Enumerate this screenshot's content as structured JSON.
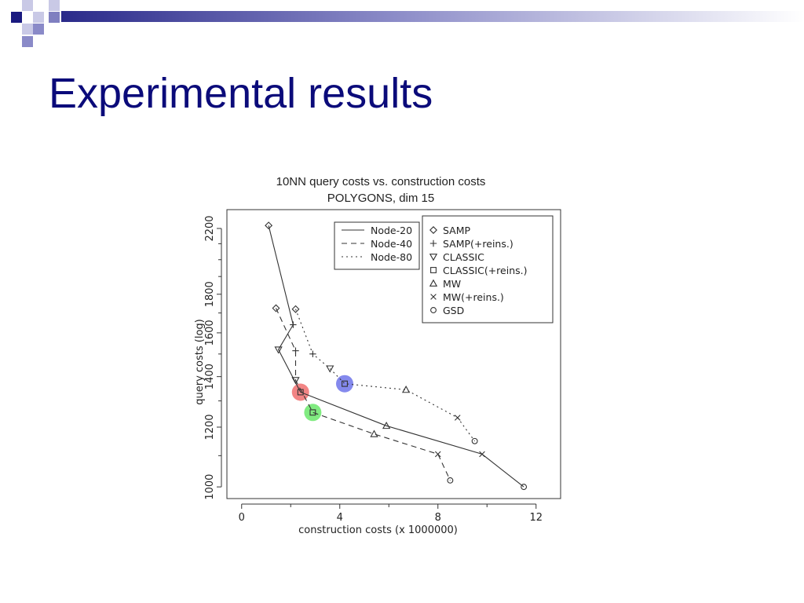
{
  "slide": {
    "title": "Experimental results",
    "accent_color": "#0b0b7a",
    "corner_decoration": "blue-checker-squares"
  },
  "chart_data": {
    "type": "scatter",
    "title": "10NN query costs vs. construction costs",
    "subtitle": "POLYGONS, dim 15",
    "xlabel": "construction costs (x 1000000)",
    "ylabel": "query costs (log)",
    "y_scale": "log",
    "xlim": [
      -0.6,
      13
    ],
    "ylim": [
      965,
      2330
    ],
    "x_ticks": [
      0,
      4,
      8,
      12
    ],
    "x_tick_labels": [
      "0",
      "4",
      "8",
      "12"
    ],
    "y_ticks": [
      1000,
      1200,
      1400,
      1600,
      1800,
      2200
    ],
    "y_tick_labels": [
      "1000",
      "1200",
      "1400",
      "1600",
      "1800",
      "2200"
    ],
    "grid": false,
    "legend_lines_title": "",
    "legend_lines": [
      {
        "label": "Node-20",
        "dash": "solid"
      },
      {
        "label": "Node-40",
        "dash": "dashed"
      },
      {
        "label": "Node-80",
        "dash": "dotted"
      }
    ],
    "legend_markers": [
      {
        "label": "SAMP",
        "marker": "diamond"
      },
      {
        "label": "SAMP(+reins.)",
        "marker": "plus"
      },
      {
        "label": "CLASSIC",
        "marker": "triangle-down"
      },
      {
        "label": "CLASSIC(+reins.)",
        "marker": "square"
      },
      {
        "label": "MW",
        "marker": "triangle-up"
      },
      {
        "label": "MW(+reins.)",
        "marker": "cross"
      },
      {
        "label": "GSD",
        "marker": "circle"
      }
    ],
    "legend_placement": "top-right",
    "series": [
      {
        "name": "Node-20",
        "dash": "solid",
        "points": [
          {
            "method": "SAMP",
            "x": 1.1,
            "y": 2220
          },
          {
            "method": "SAMP(+reins.)",
            "x": 2.1,
            "y": 1640
          },
          {
            "method": "CLASSIC",
            "x": 1.5,
            "y": 1520
          },
          {
            "method": "CLASSIC(+reins.)",
            "x": 2.4,
            "y": 1335
          },
          {
            "method": "MW",
            "x": 5.9,
            "y": 1205
          },
          {
            "method": "MW(+reins.)",
            "x": 9.8,
            "y": 1105
          },
          {
            "method": "GSD",
            "x": 11.5,
            "y": 1000
          }
        ]
      },
      {
        "name": "Node-40",
        "dash": "dashed",
        "points": [
          {
            "method": "SAMP",
            "x": 1.4,
            "y": 1725
          },
          {
            "method": "SAMP(+reins.)",
            "x": 2.2,
            "y": 1515
          },
          {
            "method": "CLASSIC",
            "x": 2.2,
            "y": 1385
          },
          {
            "method": "CLASSIC(+reins.)",
            "x": 2.9,
            "y": 1255
          },
          {
            "method": "MW",
            "x": 5.4,
            "y": 1175
          },
          {
            "method": "MW(+reins.)",
            "x": 8.0,
            "y": 1105
          },
          {
            "method": "GSD",
            "x": 8.5,
            "y": 1020
          }
        ]
      },
      {
        "name": "Node-80",
        "dash": "dotted",
        "points": [
          {
            "method": "SAMP",
            "x": 2.2,
            "y": 1720
          },
          {
            "method": "SAMP(+reins.)",
            "x": 2.9,
            "y": 1500
          },
          {
            "method": "CLASSIC",
            "x": 3.6,
            "y": 1435
          },
          {
            "method": "CLASSIC(+reins.)",
            "x": 4.2,
            "y": 1370
          },
          {
            "method": "MW",
            "x": 6.7,
            "y": 1345
          },
          {
            "method": "MW(+reins.)",
            "x": 8.8,
            "y": 1235
          },
          {
            "method": "GSD",
            "x": 9.5,
            "y": 1150
          }
        ]
      }
    ],
    "highlights": [
      {
        "series": "Node-20",
        "method": "CLASSIC(+reins.)",
        "color": "#f07070"
      },
      {
        "series": "Node-40",
        "method": "CLASSIC(+reins.)",
        "color": "#6be86b"
      },
      {
        "series": "Node-80",
        "method": "CLASSIC(+reins.)",
        "color": "#6f74ea"
      }
    ]
  }
}
